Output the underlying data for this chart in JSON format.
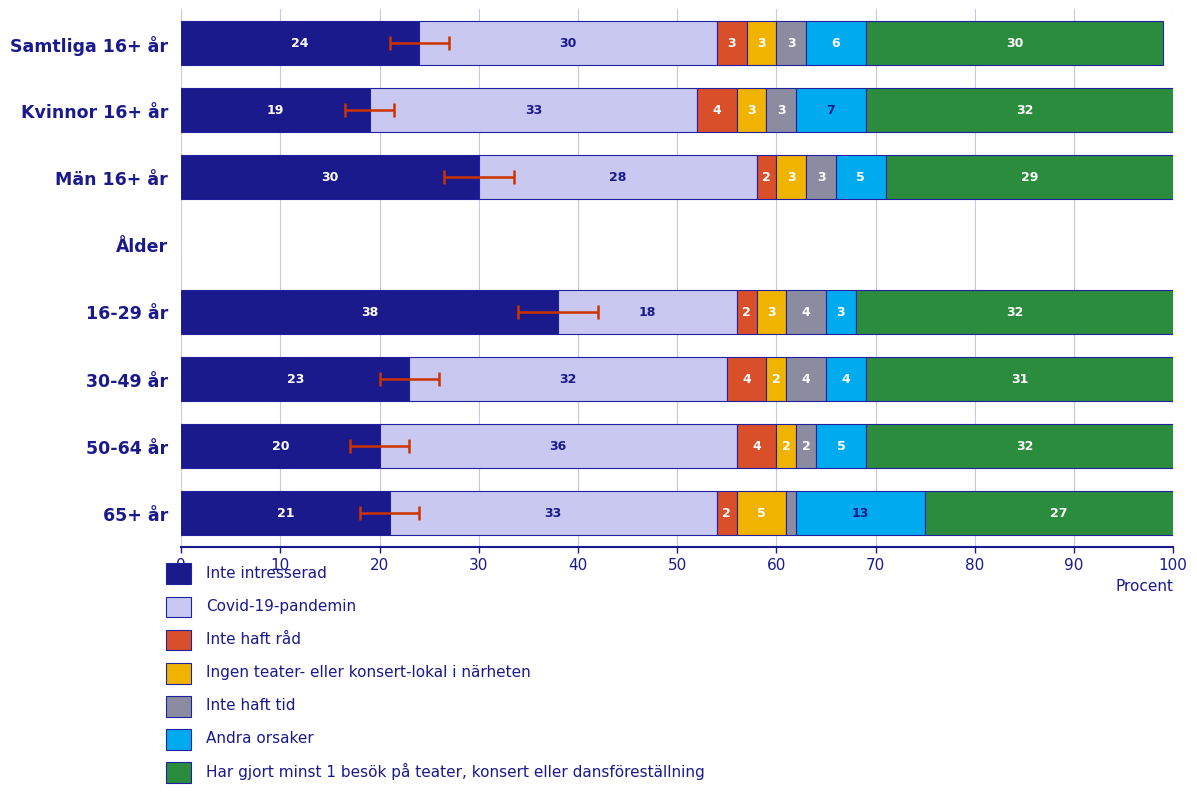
{
  "categories": [
    "Samtliga 16+ år",
    "Kvinnor 16+ år",
    "Män 16+ år",
    "Ålder",
    "16-29 år",
    "30-49 år",
    "50-64 år",
    "65+ år"
  ],
  "is_header": [
    false,
    false,
    false,
    true,
    false,
    false,
    false,
    false
  ],
  "segments": {
    "inte_intresserad": [
      24,
      19,
      30,
      0,
      38,
      23,
      20,
      21
    ],
    "covid": [
      30,
      33,
      28,
      0,
      18,
      32,
      36,
      33
    ],
    "inte_haft_rad": [
      3,
      4,
      2,
      0,
      2,
      4,
      4,
      2
    ],
    "ingen_lokal": [
      3,
      3,
      3,
      0,
      3,
      2,
      2,
      5
    ],
    "inte_haft_tid": [
      3,
      3,
      3,
      0,
      4,
      4,
      2,
      1
    ],
    "andra_orsaker": [
      6,
      7,
      5,
      0,
      3,
      4,
      5,
      13
    ],
    "minst_ett_besok": [
      30,
      32,
      29,
      0,
      32,
      31,
      32,
      27
    ]
  },
  "error_bar_x": [
    24,
    19,
    30,
    0,
    38,
    23,
    20,
    21
  ],
  "error_bar_xerr": [
    3,
    2.5,
    3.5,
    0,
    4,
    3,
    3,
    3
  ],
  "colors": {
    "inte_intresserad": "#1a1a8c",
    "covid": "#c8c8f0",
    "inte_haft_rad": "#d94f2a",
    "ingen_lokal": "#f0b400",
    "inte_haft_tid": "#8c8ca0",
    "andra_orsaker": "#00aaee",
    "minst_ett_besok": "#2a8c3c"
  },
  "legend_labels": [
    "Inte intresserad",
    "Covid-19-pandemin",
    "Inte haft råd",
    "Ingen teater- eller konsert-lokal i närheten",
    "Inte haft tid",
    "Andra orsaker",
    "Har gjort minst 1 besök på teater, konsert eller dansföreställning"
  ],
  "ylabel_text": "Procent",
  "xlim": [
    0,
    100
  ],
  "xticks": [
    0,
    10,
    20,
    30,
    40,
    50,
    60,
    70,
    80,
    90,
    100
  ],
  "background_color": "#ffffff",
  "bar_edge_color": "#2020a0",
  "label_color_light": "#1a1a8c",
  "title_color": "#1a1a8c",
  "axis_color": "#1a1a8c"
}
